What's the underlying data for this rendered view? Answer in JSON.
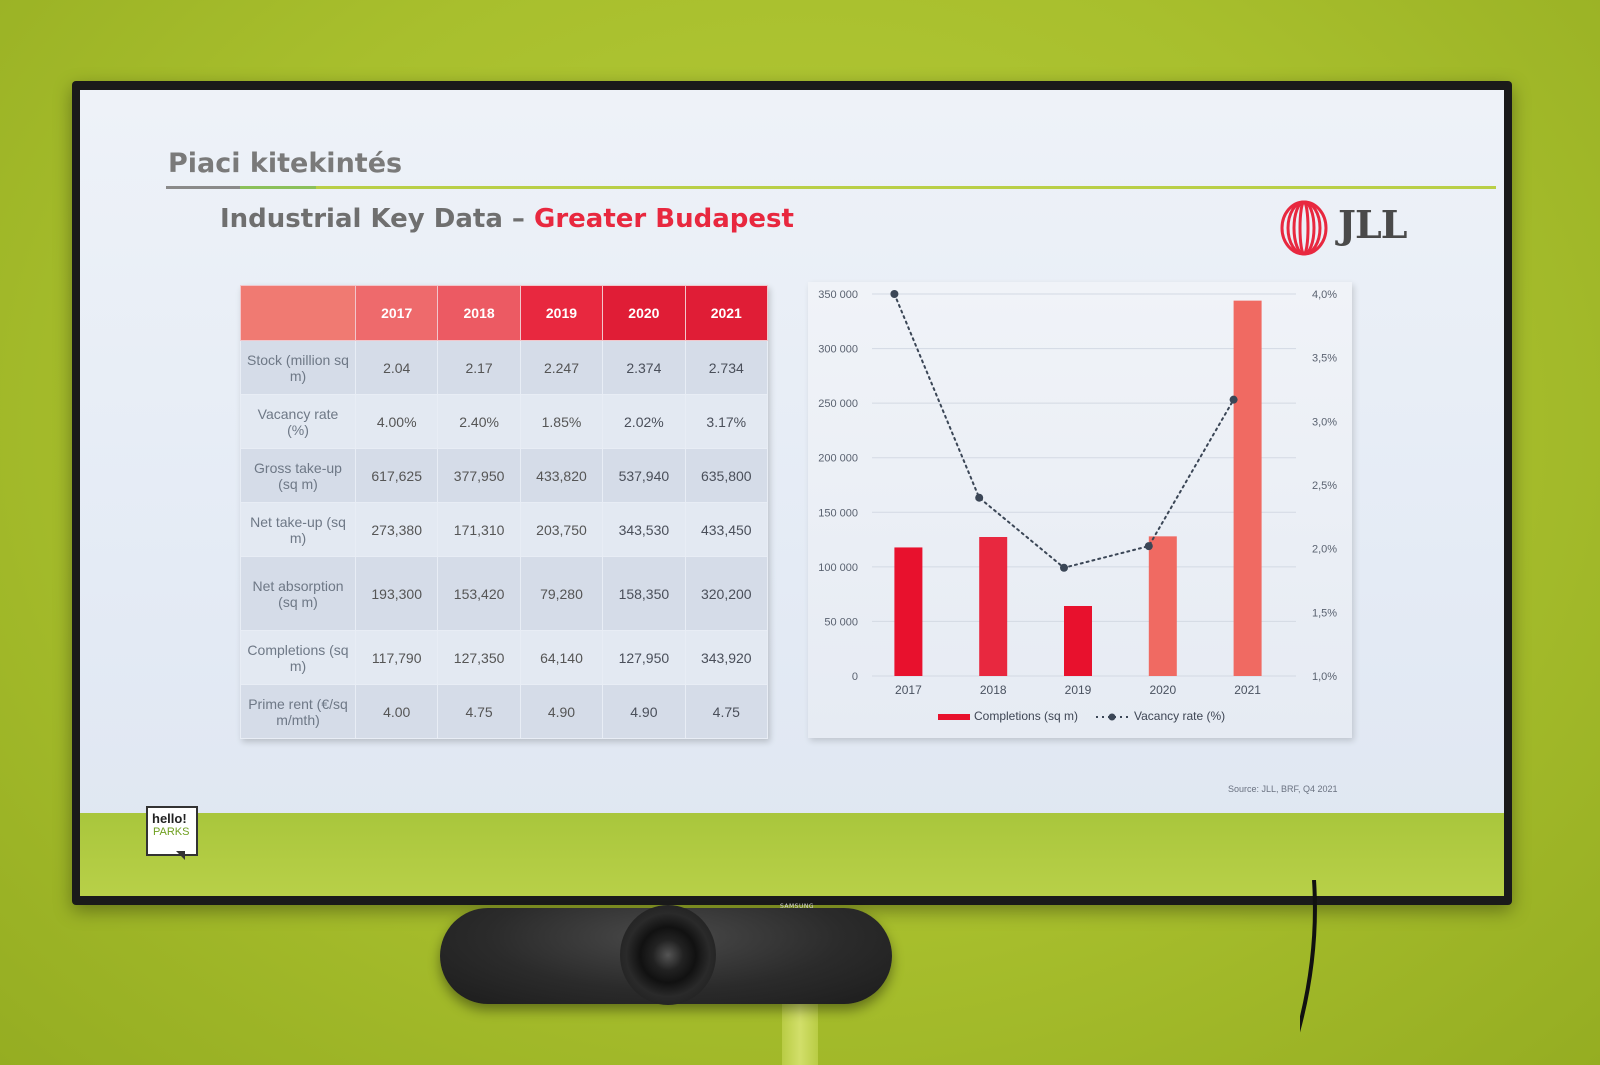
{
  "slide": {
    "title": "Piaci kitekintés",
    "subtitle_main": "Industrial Key Data – ",
    "subtitle_highlight": "Greater Budapest",
    "logo_text": "JLL",
    "source": "Source: JLL, BRF, Q4 2021",
    "hello_line1": "hello!",
    "hello_line2": "PARKS"
  },
  "tv_brand": "SAMSUNG",
  "colors": {
    "accent_red": "#e8283f",
    "header_fade": "#f07a72",
    "wall_green": "#a8bf2d"
  },
  "table": {
    "headers": [
      "",
      "2017",
      "2018",
      "2019",
      "2020",
      "2021"
    ],
    "header_colors": [
      "#f07a72",
      "#ee6a6c",
      "#ec5a63",
      "#e8283f",
      "#e01d36",
      "#e01d36"
    ],
    "rows": [
      {
        "label": "Stock (million sq m)",
        "values": [
          "2.04",
          "2.17",
          "2.247",
          "2.374",
          "2.734"
        ]
      },
      {
        "label": "Vacancy rate (%)",
        "values": [
          "4.00%",
          "2.40%",
          "1.85%",
          "2.02%",
          "3.17%"
        ]
      },
      {
        "label": "Gross take-up (sq m)",
        "values": [
          "617,625",
          "377,950",
          "433,820",
          "537,940",
          "635,800"
        ]
      },
      {
        "label": "Net take-up (sq m)",
        "values": [
          "273,380",
          "171,310",
          "203,750",
          "343,530",
          "433,450"
        ]
      },
      {
        "label": "Net absorption (sq m)",
        "values": [
          "193,300",
          "153,420",
          "79,280",
          "158,350",
          "320,200"
        ]
      },
      {
        "label": "Completions (sq m)",
        "values": [
          "117,790",
          "127,350",
          "64,140",
          "127,950",
          "343,920"
        ]
      },
      {
        "label": "Prime rent (€/sq m/mth)",
        "values": [
          "4.00",
          "4.75",
          "4.90",
          "4.90",
          "4.75"
        ]
      }
    ]
  },
  "chart_data": {
    "type": "bar",
    "categories": [
      "2017",
      "2018",
      "2019",
      "2020",
      "2021"
    ],
    "series": [
      {
        "name": "Completions (sq m)",
        "type": "bar",
        "axis": "left",
        "values": [
          117790,
          127350,
          64140,
          127950,
          343920
        ]
      },
      {
        "name": "Vacancy rate (%)",
        "type": "line",
        "axis": "right",
        "values": [
          4.0,
          2.4,
          1.85,
          2.02,
          3.17
        ]
      }
    ],
    "ylim": [
      0,
      350000
    ],
    "y_ticks": [
      "0",
      "50 000",
      "100 000",
      "150 000",
      "200 000",
      "250 000",
      "300 000",
      "350 000"
    ],
    "y2lim": [
      1.0,
      4.0
    ],
    "y2_ticks": [
      "1,0%",
      "1,5%",
      "2,0%",
      "2,5%",
      "3,0%",
      "3,5%",
      "4,0%"
    ],
    "grid": true,
    "legend": "bottom"
  }
}
